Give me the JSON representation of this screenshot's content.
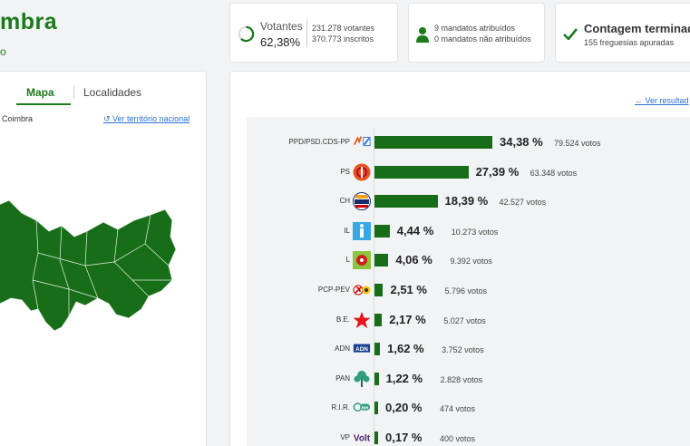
{
  "header": {
    "title": "mbra",
    "subtitle": "o"
  },
  "votantes": {
    "label": "Votantes",
    "percent": "62,38%",
    "votantes_line": "231.278 votantes",
    "inscritos_line": "370.773 inscritos",
    "fraction": 0.6238
  },
  "mandatos": {
    "atribuidos": "9 mandatos atribuídos",
    "nao_atribuidos": "0 mandatos não atribuídos"
  },
  "contagem": {
    "title": "Contagem terminada",
    "freguesias": "155 freguesias apuradas"
  },
  "map_panel": {
    "tab_mapa": "Mapa",
    "tab_localidades": "Localidades",
    "region": "Coimbra",
    "national_link": "Ver território nacional"
  },
  "results_panel": {
    "ver_resultados": "Ver resultad"
  },
  "colors": {
    "accent": "#1b7a1b",
    "bar": "#186e18",
    "link": "#2a6fd6"
  },
  "chart_data": {
    "type": "bar",
    "orientation": "horizontal",
    "categories": [
      "PPD/PSD.CDS-PP",
      "PS",
      "CH",
      "IL",
      "L",
      "PCP-PEV",
      "B.E.",
      "ADN",
      "PAN",
      "R.I.R.",
      "VP"
    ],
    "values": [
      34.38,
      27.39,
      18.39,
      4.44,
      4.06,
      2.51,
      2.17,
      1.62,
      1.22,
      0.2,
      0.17
    ],
    "percent_labels": [
      "34,38 %",
      "27,39 %",
      "18,39 %",
      "4,44 %",
      "4,06 %",
      "2,51 %",
      "2,17 %",
      "1,62 %",
      "1,22 %",
      "0,20 %",
      "0,17 %"
    ],
    "votes": [
      "79.524 votos",
      "63.348 votos",
      "42.527 votos",
      "10.273 votos",
      "9.392 votos",
      "5.796 votos",
      "5.027 votos",
      "3.752 votos",
      "2.828 votos",
      "474 votos",
      "400 votos"
    ],
    "logos": [
      "ad-logo",
      "ps-logo",
      "chega-logo",
      "il-logo",
      "livre-logo",
      "cdu-logo",
      "be-logo",
      "adn-logo",
      "pan-logo",
      "rir-logo",
      "volt-logo"
    ]
  }
}
